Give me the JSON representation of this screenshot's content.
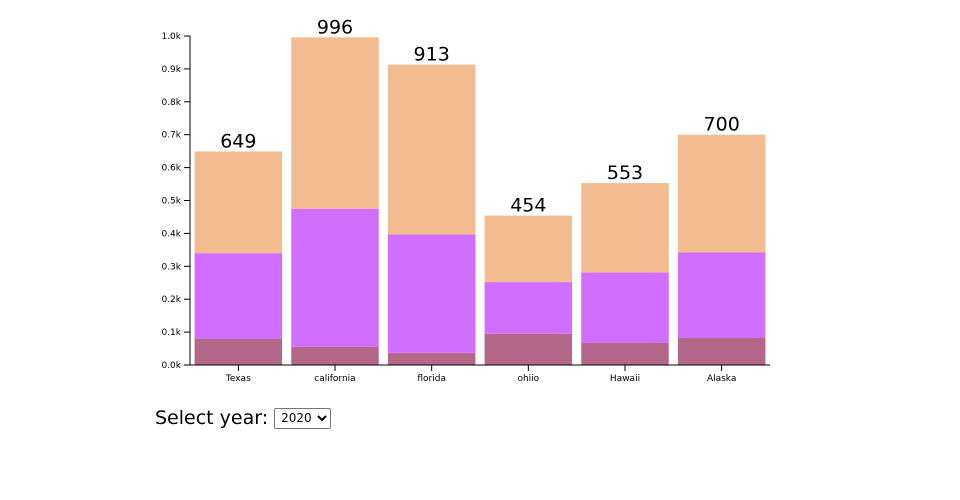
{
  "chart_data": {
    "type": "bar",
    "stacked": true,
    "categories": [
      "Texas",
      "california",
      "florida",
      "ohiio",
      "Hawaii",
      "Alaska"
    ],
    "series": [
      {
        "values": [
          80,
          55,
          37,
          95,
          67,
          82
        ],
        "color": "#b5678a"
      },
      {
        "values": [
          260,
          420,
          360,
          157,
          214,
          260
        ],
        "color": "#d16eff"
      },
      {
        "values": [
          309,
          521,
          516,
          202,
          272,
          358
        ],
        "color": "#f2bb90"
      }
    ],
    "totals": [
      649,
      996,
      913,
      454,
      553,
      700
    ],
    "ylim": [
      0,
      1000
    ],
    "yticks": [
      0,
      100,
      200,
      300,
      400,
      500,
      600,
      700,
      800,
      900,
      1000
    ],
    "ytick_labels": [
      "0.0k",
      "0.1k",
      "0.2k",
      "0.3k",
      "0.4k",
      "0.5k",
      "0.6k",
      "0.7k",
      "0.8k",
      "0.9k",
      "1.0k"
    ],
    "grid": false,
    "title": "",
    "xlabel": "",
    "ylabel": ""
  },
  "controls": {
    "label": "Select year:",
    "selected_year": "2020",
    "options": [
      "2020"
    ]
  }
}
